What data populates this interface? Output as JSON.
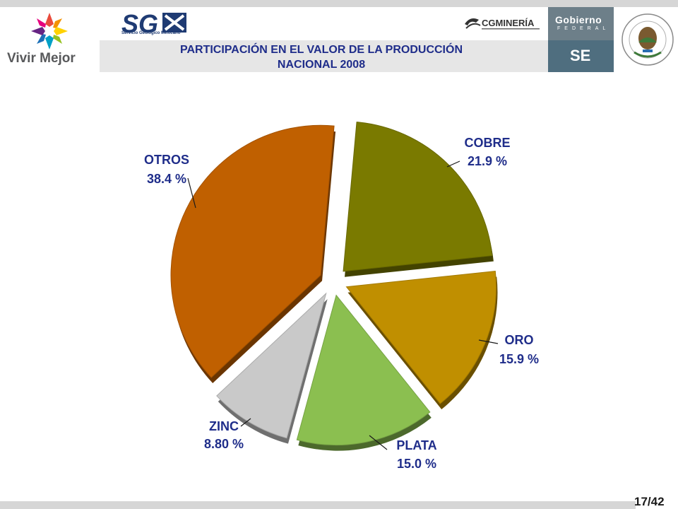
{
  "header": {
    "vivir_mejor_label": "Vivir Mejor",
    "sgm_label": "Servicio Geológico Mexicano",
    "cgm_label": "CGMINERÍA",
    "gobierno_label": "Gobierno",
    "federal_label": "FEDERAL",
    "se_label": "SE"
  },
  "slide": {
    "title_line1": "PARTICIPACIÓN  EN EL VALOR DE LA PRODUCCIÓN",
    "title_line2": "NACIONAL 2008",
    "page_number": "17/42"
  },
  "chart_data": {
    "type": "pie",
    "title": "PARTICIPACIÓN  EN EL VALOR DE LA PRODUCCIÓN NACIONAL 2008",
    "slices": [
      {
        "name": "COBRE",
        "value": 21.9,
        "label": "21.9 %",
        "color": "#7a7a00"
      },
      {
        "name": "ORO",
        "value": 15.9,
        "label": "15.9 %",
        "color": "#c08f00"
      },
      {
        "name": "PLATA",
        "value": 15.0,
        "label": "15.0 %",
        "color": "#8bbf50"
      },
      {
        "name": "ZINC",
        "value": 8.8,
        "label": "8.80 %",
        "color": "#c9c9c9"
      },
      {
        "name": "OTROS",
        "value": 38.4,
        "label": "38.4 %",
        "color": "#c06000"
      }
    ],
    "exploded": true
  }
}
